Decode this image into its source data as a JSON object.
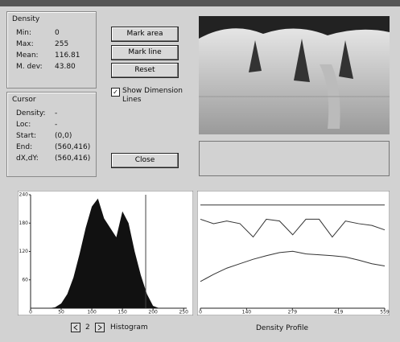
{
  "buttons": {
    "mark_area": "Mark area",
    "mark_line": "Mark line",
    "reset": "Reset",
    "show_dimension_lines": "Show Dimension Lines",
    "close": "Close"
  },
  "density": {
    "title": "Density",
    "rows": [
      [
        "Min:",
        "0"
      ],
      [
        "Max:",
        "255"
      ],
      [
        "Mean:",
        "116.81"
      ],
      [
        "M. dev:",
        "43.80"
      ]
    ]
  },
  "cursor": {
    "title": "Cursor",
    "rows": [
      [
        "Density:",
        "-"
      ],
      [
        "Loc:",
        "-"
      ],
      [
        "Start:",
        "(0,0)"
      ],
      [
        "End:",
        "(560,416)"
      ],
      [
        "dX,dY:",
        "(560,416)"
      ]
    ]
  },
  "histogram": {
    "type": "area",
    "color": "#111111",
    "xlim": [
      0,
      255
    ],
    "xticks": [
      0,
      50,
      100,
      150,
      200,
      250
    ],
    "ylim": [
      0,
      240
    ],
    "yticks": [
      60,
      120,
      180,
      240
    ],
    "x": [
      0,
      10,
      20,
      30,
      40,
      50,
      60,
      70,
      80,
      90,
      100,
      110,
      120,
      130,
      140,
      150,
      160,
      170,
      180,
      190,
      200,
      210,
      220,
      230,
      240,
      250
    ],
    "values": [
      0,
      0,
      0,
      0,
      2,
      10,
      30,
      65,
      115,
      170,
      215,
      232,
      190,
      170,
      150,
      205,
      180,
      120,
      70,
      30,
      5,
      0,
      0,
      0,
      0,
      0
    ],
    "marker_x": 188
  },
  "profile": {
    "type": "line",
    "xlim": [
      0,
      559
    ],
    "xticks": [
      0,
      140,
      279,
      419,
      559
    ],
    "ylim": [
      0,
      255
    ],
    "reference_y": 232,
    "x": [
      0,
      40,
      80,
      120,
      160,
      200,
      240,
      280,
      320,
      360,
      400,
      440,
      480,
      520,
      559
    ],
    "series": [
      {
        "color": "#333333",
        "values": [
          200,
          190,
          196,
          190,
          160,
          200,
          196,
          165,
          200,
          200,
          160,
          196,
          190,
          186,
          176
        ]
      },
      {
        "color": "#333333",
        "values": [
          60,
          76,
          90,
          100,
          110,
          118,
          125,
          128,
          122,
          120,
          118,
          115,
          108,
          100,
          95
        ]
      }
    ]
  },
  "footer": {
    "page": "2",
    "histogram_label": "Histogram",
    "profile_label": "Density Profile"
  }
}
